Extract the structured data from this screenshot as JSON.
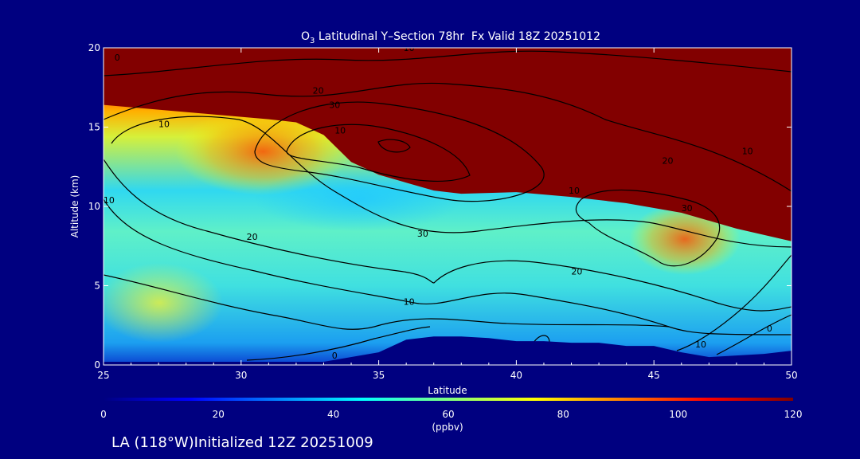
{
  "chart_data": {
    "type": "heatmap",
    "title": {
      "prefix": "O",
      "subscript": "3",
      "rest": " Latitudinal Y–Section 78hr  Fx Valid 18Z 20251012"
    },
    "xlabel": "Latitude",
    "ylabel": "Altitude (km)",
    "xlim": [
      25,
      50
    ],
    "ylim": [
      0,
      20
    ],
    "x_ticks": [
      25,
      30,
      35,
      40,
      45,
      50
    ],
    "y_ticks": [
      0,
      5,
      10,
      15,
      20
    ],
    "colorbar": {
      "ticks": [
        0,
        20,
        40,
        60,
        80,
        100,
        120
      ],
      "unit": "(ppbv)",
      "range": [
        0,
        120
      ],
      "colors": [
        "#000080",
        "#0000ff",
        "#0080ff",
        "#00ffff",
        "#80ff80",
        "#ffff00",
        "#ff8000",
        "#ff0000",
        "#800000"
      ]
    },
    "terrain_km": {
      "lat": [
        25,
        32.5,
        33,
        35,
        36,
        37,
        38,
        39,
        40,
        41,
        42,
        43,
        44,
        45,
        46,
        47,
        48,
        49,
        50
      ],
      "alt": [
        0.2,
        0.2,
        0.2,
        0.8,
        1.6,
        1.8,
        1.8,
        1.7,
        1.5,
        1.5,
        1.4,
        1.4,
        1.2,
        1.2,
        0.8,
        0.5,
        0.6,
        0.7,
        0.9
      ]
    },
    "tropopause_120ppbv_km": {
      "lat": [
        25,
        29,
        31,
        32,
        33,
        34,
        35,
        36,
        37,
        38,
        40,
        42,
        44,
        46,
        48,
        50
      ],
      "alt": [
        16.4,
        15.8,
        15.5,
        15.3,
        14.5,
        12.8,
        12.0,
        11.5,
        11.0,
        10.8,
        10.9,
        10.6,
        10.2,
        9.6,
        8.6,
        7.8
      ]
    },
    "contour_labels": [
      {
        "text": "0",
        "lat": 25.5,
        "alt": 19.2
      },
      {
        "text": "10",
        "lat": 36.1,
        "alt": 19.8
      },
      {
        "text": "20",
        "lat": 32.8,
        "alt": 17.1
      },
      {
        "text": "30",
        "lat": 33.4,
        "alt": 16.2
      },
      {
        "text": "10",
        "lat": 48.4,
        "alt": 13.3
      },
      {
        "text": "20",
        "lat": 45.5,
        "alt": 12.7
      },
      {
        "text": "10",
        "lat": 27.2,
        "alt": 15.0
      },
      {
        "text": "10",
        "lat": 33.6,
        "alt": 14.6
      },
      {
        "text": "10",
        "lat": 25.2,
        "alt": 10.2
      },
      {
        "text": "20",
        "lat": 30.4,
        "alt": 7.9
      },
      {
        "text": "30",
        "lat": 36.6,
        "alt": 8.1
      },
      {
        "text": "30",
        "lat": 46.2,
        "alt": 9.7
      },
      {
        "text": "10",
        "lat": 42.1,
        "alt": 10.8
      },
      {
        "text": "20",
        "lat": 42.2,
        "alt": 5.7
      },
      {
        "text": "10",
        "lat": 36.1,
        "alt": 3.8
      },
      {
        "text": "0",
        "lat": 33.4,
        "alt": 0.4
      },
      {
        "text": "10",
        "lat": 46.7,
        "alt": 1.1
      },
      {
        "text": "0",
        "lat": 49.2,
        "alt": 2.1
      }
    ]
  },
  "footer": {
    "caption": "LA (118°W)Initialized 12Z 20251009"
  }
}
